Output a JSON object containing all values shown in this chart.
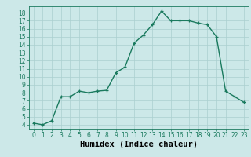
{
  "x": [
    0,
    1,
    2,
    3,
    4,
    5,
    6,
    7,
    8,
    9,
    10,
    11,
    12,
    13,
    14,
    15,
    16,
    17,
    18,
    19,
    20,
    21,
    22,
    23
  ],
  "y": [
    4.2,
    4.0,
    4.5,
    7.5,
    7.5,
    8.2,
    8.0,
    8.2,
    8.3,
    10.5,
    11.2,
    14.2,
    15.2,
    16.5,
    18.2,
    17.0,
    17.0,
    17.0,
    16.7,
    16.5,
    15.0,
    8.2,
    7.5,
    6.8
  ],
  "line_color": "#1a7a5e",
  "marker": "+",
  "marker_size": 3,
  "line_width": 1.0,
  "bg_color": "#cce8e8",
  "grid_color": "#aacfcf",
  "xlabel": "Humidex (Indice chaleur)",
  "xlim": [
    -0.5,
    23.5
  ],
  "ylim": [
    3.5,
    18.8
  ],
  "yticks": [
    4,
    5,
    6,
    7,
    8,
    9,
    10,
    11,
    12,
    13,
    14,
    15,
    16,
    17,
    18
  ],
  "xticks": [
    0,
    1,
    2,
    3,
    4,
    5,
    6,
    7,
    8,
    9,
    10,
    11,
    12,
    13,
    14,
    15,
    16,
    17,
    18,
    19,
    20,
    21,
    22,
    23
  ],
  "tick_label_size": 5.5,
  "xlabel_size": 7.5,
  "marker_edge_width": 0.9
}
